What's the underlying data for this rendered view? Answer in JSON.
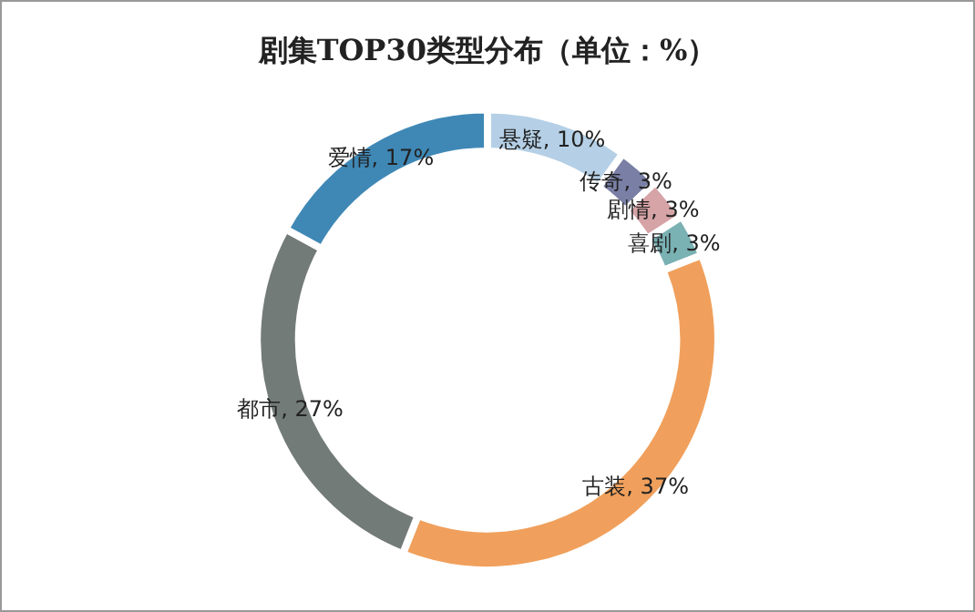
{
  "chart_data": {
    "type": "donut",
    "title": "剧集TOP30类型分布（单位：%）",
    "categories": [
      "悬疑",
      "传奇",
      "剧情",
      "喜剧",
      "古装",
      "都市",
      "爱情"
    ],
    "values": [
      10,
      3,
      3,
      3,
      37,
      27,
      17
    ],
    "value_labels": [
      "10%",
      "3%",
      "3%",
      "3%",
      "37%",
      "27%",
      "17%"
    ],
    "colors": [
      "#b5d0e6",
      "#7a7fa6",
      "#d6a3a6",
      "#7ab1b3",
      "#f0a05c",
      "#737b78",
      "#3f88b6"
    ],
    "legend": false
  }
}
